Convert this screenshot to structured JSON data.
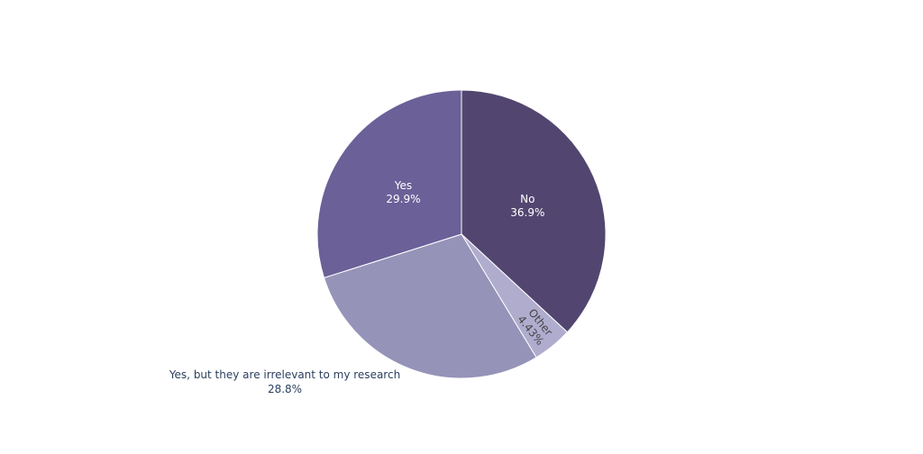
{
  "chart_data": {
    "type": "pie",
    "title": "",
    "direction": "clockwise",
    "start_angle_deg": 0,
    "slices": [
      {
        "label": "No",
        "value": 36.9,
        "value_text": "36.9%",
        "color": "#524670",
        "label_position": "inside",
        "label_color": "#ffffff"
      },
      {
        "label": "Other",
        "value": 4.43,
        "value_text": "4.43%",
        "color": "#b0acce",
        "label_position": "inside-rotated",
        "label_color": "#444444"
      },
      {
        "label": "Yes, but they are irrelevant to my research",
        "value": 28.8,
        "value_text": "28.8%",
        "color": "#9593b8",
        "label_position": "outside",
        "label_color": "#2a3f5f"
      },
      {
        "label": "Yes",
        "value": 29.9,
        "value_text": "29.9%",
        "color": "#6b6098",
        "label_position": "inside",
        "label_color": "#ffffff"
      }
    ],
    "legend": "none"
  }
}
